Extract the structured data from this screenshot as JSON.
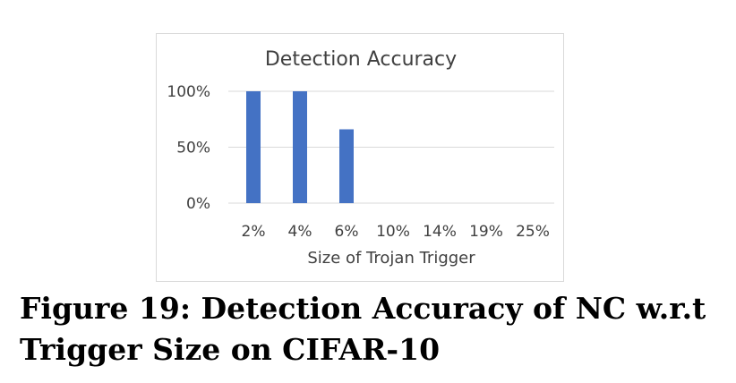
{
  "chart_data": {
    "type": "bar",
    "title": "Detection Accuracy",
    "xlabel": "Size of Trojan Trigger",
    "ylabel": "",
    "categories": [
      "2%",
      "4%",
      "6%",
      "10%",
      "14%",
      "19%",
      "25%"
    ],
    "values": [
      100,
      100,
      66,
      0,
      0,
      0,
      0
    ],
    "ylim": [
      0,
      100
    ],
    "yticks": [
      0,
      50,
      100
    ],
    "ytick_labels": [
      "0%",
      "50%",
      "100%"
    ],
    "grid": true,
    "legend": "none",
    "bar_color": "#4472c4"
  },
  "caption": "Figure 19: Detection Accuracy of NC w.r.t Trigger Size on CIFAR-10"
}
